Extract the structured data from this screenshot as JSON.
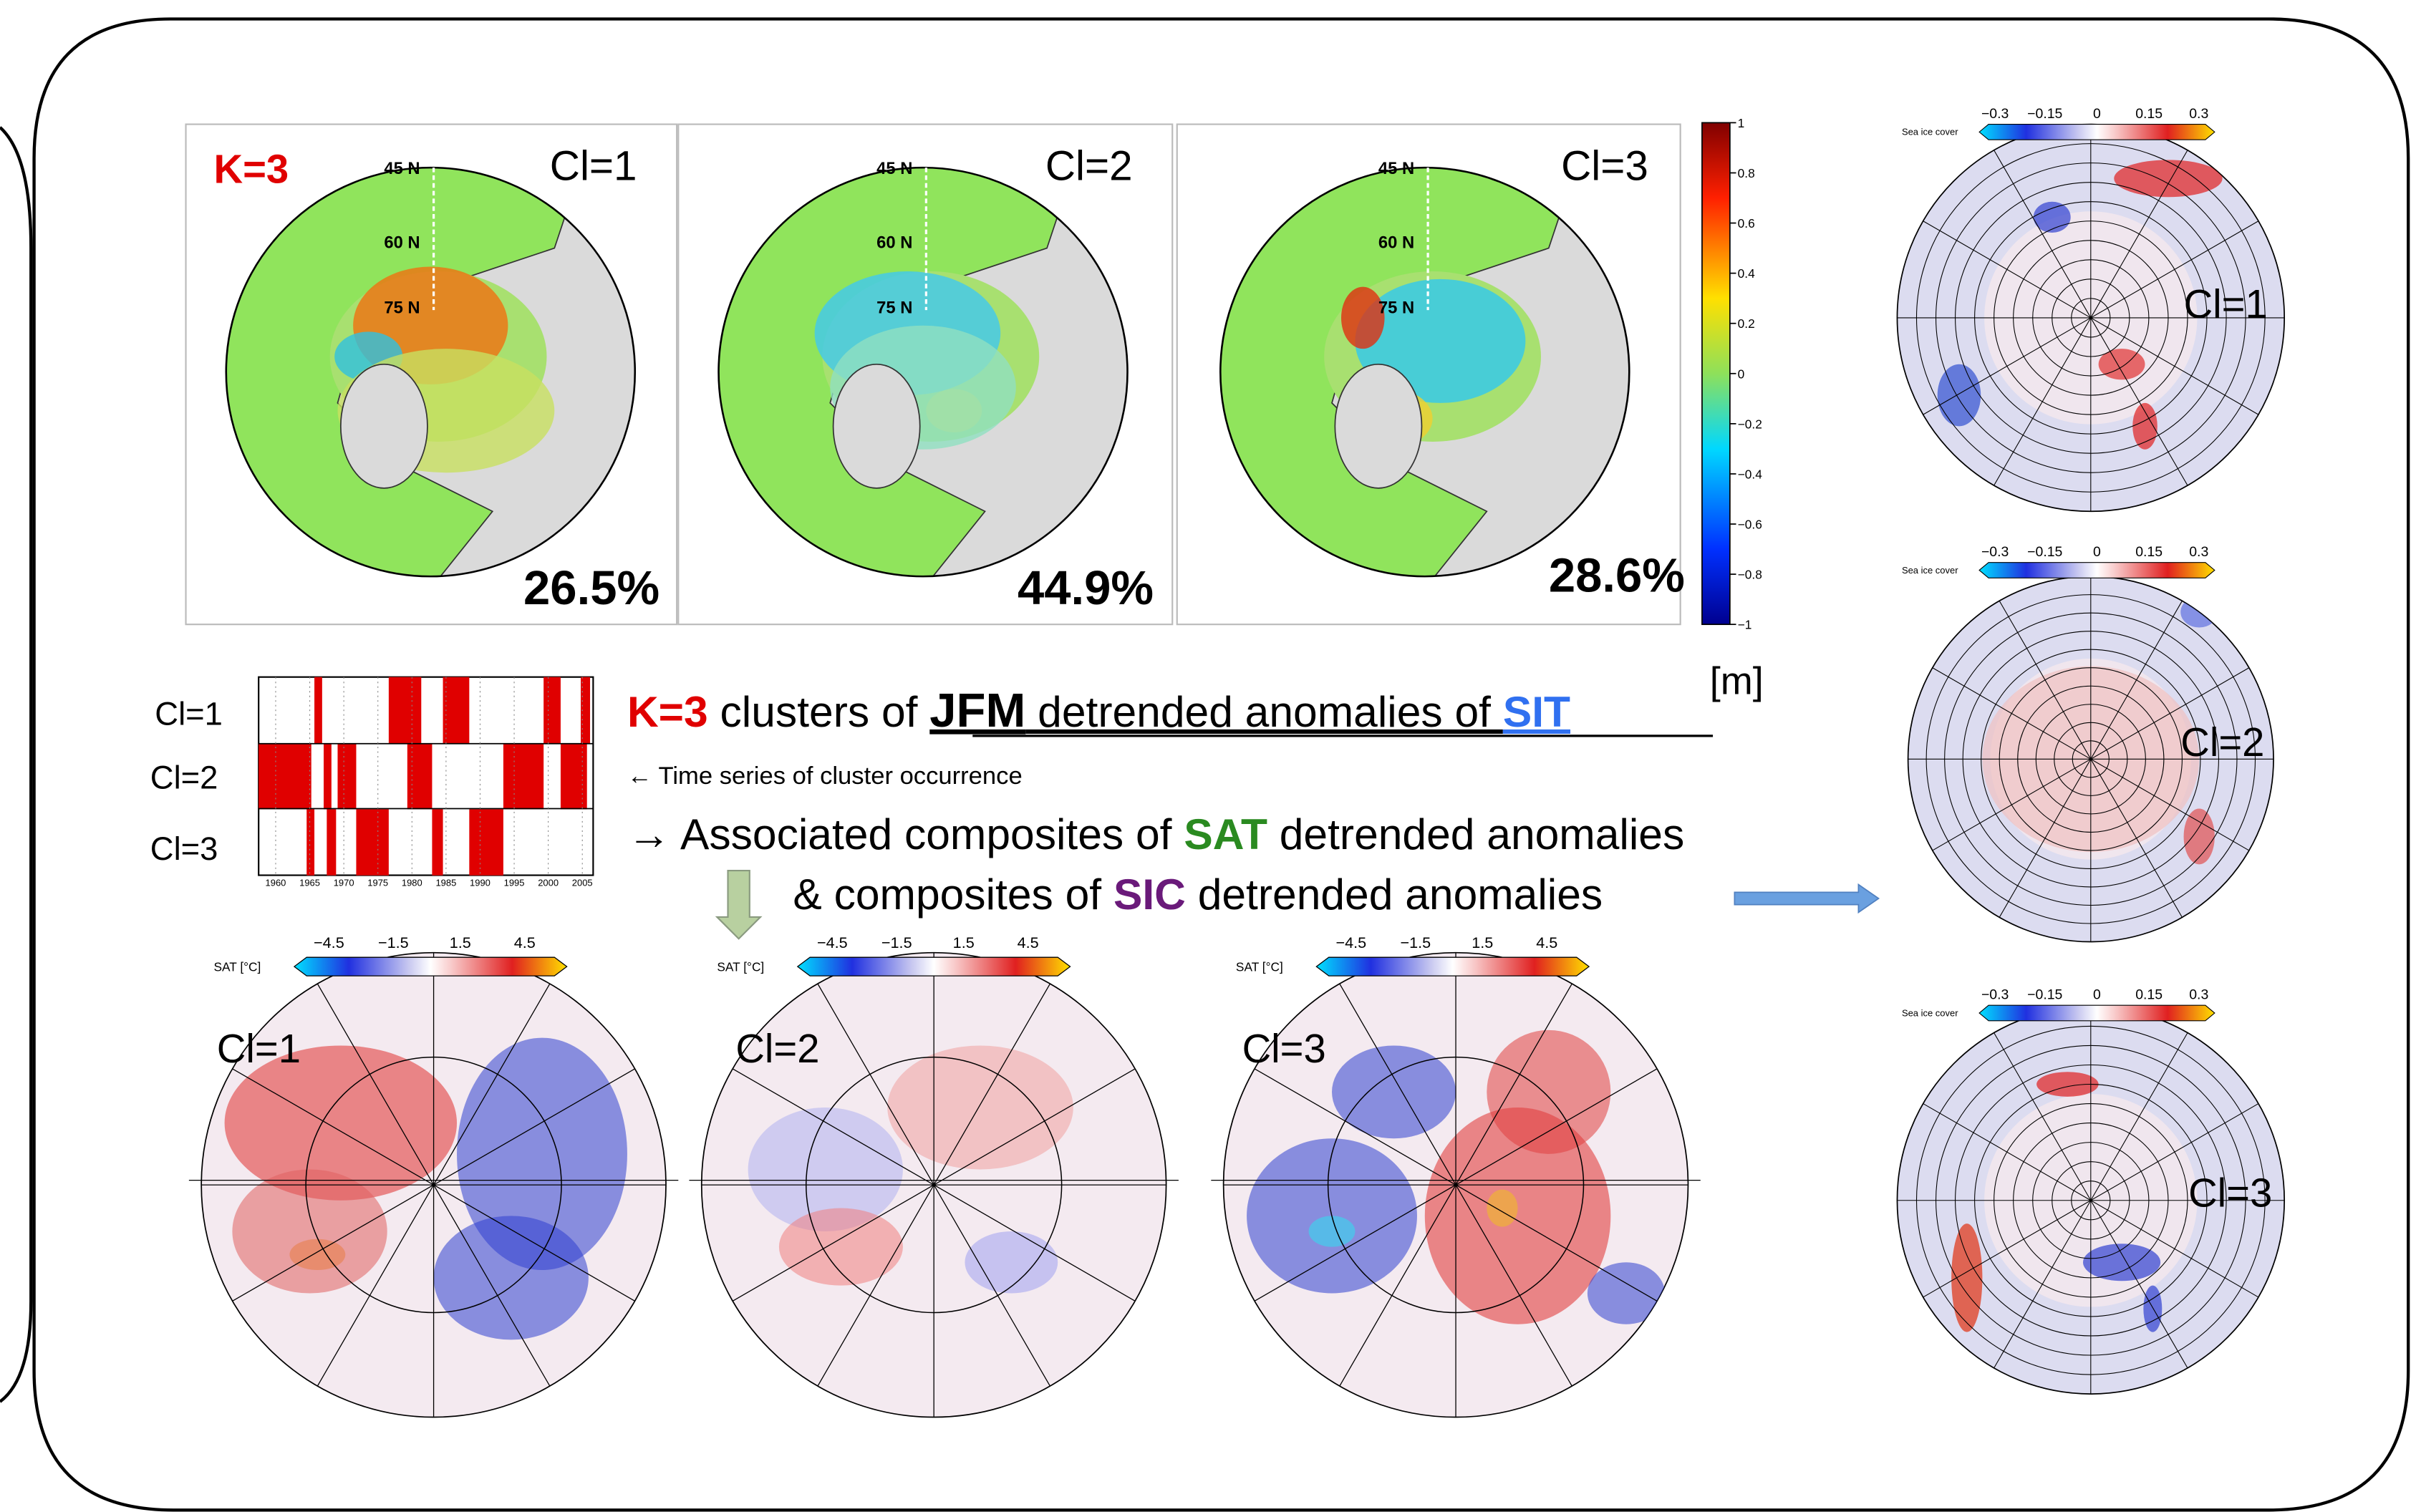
{
  "top_panel": {
    "label": "K=3",
    "clusters": [
      {
        "label": "Cl=1",
        "percent": "26.5%"
      },
      {
        "label": "Cl=2",
        "percent": "44.9%"
      },
      {
        "label": "Cl=3",
        "percent": "28.6%"
      }
    ],
    "latitude_labels": [
      "45 N",
      "60 N",
      "75 N"
    ],
    "colorbar_ticks": [
      "1",
      "0.8",
      "0.6",
      "0.4",
      "0.2",
      "0",
      "−0.2",
      "−0.4",
      "−0.6",
      "−0.8",
      "−1"
    ],
    "colorbar_unit": "[m]"
  },
  "time_series": {
    "rows": [
      "Cl=1",
      "Cl=2",
      "Cl=3"
    ],
    "years": [
      "1960",
      "1965",
      "1970",
      "1975",
      "1980",
      "1985",
      "1990",
      "1995",
      "2000",
      "2005"
    ]
  },
  "heading": {
    "parts": [
      "K=3",
      " clusters of ",
      "JFM",
      " detrended anomalies of ",
      "SIT"
    ]
  },
  "notes": {
    "time_series": "← Time series of cluster occurrence",
    "sat_line": [
      "→ Associated composites of ",
      "SAT",
      " detrended anomalies"
    ],
    "sic_line": [
      "& composites of ",
      "SIC",
      " detrended anomalies"
    ]
  },
  "sat_panel": {
    "colorbar_label": "SAT [°C]",
    "colorbar_ticks": [
      "−4.5",
      "−1.5",
      "1.5",
      "4.5"
    ],
    "maps": [
      "Cl=1",
      "Cl=2",
      "Cl=3"
    ]
  },
  "sic_panel": {
    "colorbar_label": "Sea ice cover",
    "colorbar_ticks": [
      "−0.3",
      "−0.15",
      "0",
      "0.15",
      "0.3"
    ],
    "maps": [
      "Cl=1",
      "Cl=2",
      "Cl=3"
    ]
  }
}
